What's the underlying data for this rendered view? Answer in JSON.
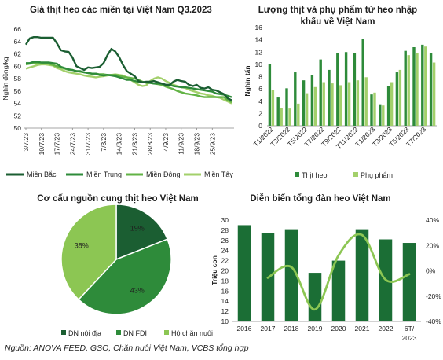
{
  "colors": {
    "bac": "#1b5e32",
    "trung": "#2e8b3a",
    "dong": "#62b345",
    "tay": "#a3d06b",
    "thit": "#2e8b3a",
    "phu": "#a3d06b",
    "noidia": "#1b5e32",
    "fdi": "#2e8b3a",
    "chan": "#8cc653",
    "bar4": "#1b6e35",
    "line4": "#8cc653"
  },
  "chart_data": [
    {
      "type": "line",
      "title": "Giá thịt heo các miền tại Việt Nam Q3.2023",
      "ylabel": "Nghìn đồng/kg",
      "ylim": [
        50,
        66
      ],
      "yticks": [
        50,
        52,
        54,
        56,
        58,
        60,
        62,
        64,
        66
      ],
      "x_tick_labels": [
        "3/7/23",
        "10/7/23",
        "17/7/23",
        "24/7/23",
        "31/7/23",
        "7/8/23",
        "14/8/23",
        "21/8/23",
        "28/8/23",
        "4/9/23",
        "11/9/23",
        "18/9/23",
        "25/9/23"
      ],
      "legend_position": "bottom",
      "series": [
        {
          "name": "Miền Bắc",
          "values": [
            63.5,
            64.5,
            64.7,
            64.7,
            64.6,
            64.6,
            64.6,
            64.6,
            63.7,
            62.6,
            62.4,
            62.3,
            61.4,
            60.0,
            59.7,
            59.4,
            59.8,
            59.7,
            59.8,
            59.9,
            60.5,
            61.8,
            62.8,
            62.4,
            61.5,
            60.2,
            59.2,
            58.8,
            58.4,
            57.6,
            57.4,
            57.5,
            57.5,
            57.6,
            57.4,
            57.2,
            57.0,
            57.0,
            57.5,
            57.8,
            57.6,
            57.5,
            57.0,
            56.8,
            57.0,
            56.5,
            56.4,
            56.6,
            56.2,
            56.1,
            55.8,
            55.5,
            54.8,
            54.5
          ]
        },
        {
          "name": "Miền Trung",
          "values": [
            60.5,
            60.5,
            60.7,
            60.7,
            60.6,
            60.6,
            60.6,
            60.5,
            60.4,
            59.9,
            59.7,
            59.5,
            59.4,
            59.2,
            59.2,
            59.0,
            58.9,
            58.8,
            58.8,
            58.6,
            58.5,
            58.6,
            58.5,
            58.4,
            58.2,
            58.0,
            57.8,
            57.8,
            57.6,
            57.5,
            57.4,
            57.4,
            57.3,
            57.2,
            57.2,
            57.2,
            57.0,
            57.0,
            56.8,
            56.7,
            56.6,
            56.6,
            56.5,
            56.4,
            56.3,
            56.2,
            56.1,
            56.0,
            55.9,
            55.6,
            55.5,
            55.4,
            55.2,
            55.0
          ]
        },
        {
          "name": "Miền Đông",
          "values": [
            60.3,
            60.4,
            60.5,
            60.5,
            60.5,
            60.5,
            60.4,
            60.2,
            60.0,
            59.8,
            59.6,
            59.4,
            59.4,
            59.2,
            59.1,
            59.0,
            58.9,
            58.8,
            58.8,
            58.7,
            58.7,
            58.6,
            58.6,
            58.6,
            58.5,
            58.3,
            58.2,
            58.1,
            58.0,
            57.8,
            57.5,
            57.3,
            57.3,
            57.2,
            57.1,
            57.0,
            56.7,
            56.5,
            56.3,
            56.0,
            55.8,
            55.6,
            55.5,
            55.4,
            55.3,
            55.1,
            55.0,
            55.0,
            55.0,
            55.0,
            55.0,
            55.0,
            54.5,
            54.2
          ]
        },
        {
          "name": "Miền Tây",
          "values": [
            59.6,
            59.8,
            60.0,
            60.2,
            60.3,
            60.3,
            60.2,
            60.1,
            59.7,
            59.5,
            59.2,
            59.0,
            58.9,
            58.8,
            58.7,
            58.5,
            58.4,
            58.3,
            58.2,
            58.3,
            58.4,
            58.5,
            58.6,
            58.7,
            58.6,
            58.5,
            58.2,
            57.8,
            57.4,
            57.0,
            56.8,
            56.9,
            57.6,
            58.0,
            58.2,
            58.0,
            57.6,
            57.3,
            57.0,
            56.8,
            56.6,
            56.5,
            56.2,
            56.0,
            55.8,
            55.6,
            55.5,
            55.3,
            55.2,
            55.0,
            54.9,
            54.6,
            54.3,
            54.0
          ]
        }
      ]
    },
    {
      "type": "bar",
      "title_line1": "Lượng thịt và phụ phẩm từ heo nhập",
      "title_line2": "khẩu về Việt Nam",
      "ylabel": "Nghìn tấn",
      "ylim": [
        0,
        16
      ],
      "yticks": [
        0,
        2,
        4,
        6,
        8,
        10,
        12,
        14,
        16
      ],
      "x_tick_labels": [
        "T1/2022",
        "T3/2022",
        "T5/2022",
        "T7/2022",
        "T9/2022",
        "T11/2022",
        "T1/2023",
        "T3/2023",
        "T5/2023",
        "T7/2023"
      ],
      "legend_position": "bottom",
      "series": [
        {
          "name": "Thịt heo",
          "values": [
            10.1,
            4.6,
            6.1,
            8.7,
            7.4,
            8.2,
            10.8,
            9.1,
            11.8,
            12.0,
            11.8,
            14.2,
            5.1,
            3.5,
            6.5,
            8.7,
            12.2,
            12.8,
            13.2,
            11.8
          ]
        },
        {
          "name": "Phụ phẩm",
          "values": [
            5.8,
            2.9,
            2.8,
            3.6,
            5.3,
            6.3,
            7.1,
            6.9,
            6.6,
            7.1,
            7.4,
            7.9,
            5.4,
            3.3,
            7.1,
            9.1,
            11.5,
            11.8,
            12.9,
            10.3
          ]
        }
      ]
    },
    {
      "type": "pie",
      "title": "Cơ cấu nguồn cung thịt heo Việt Nam",
      "legend_position": "bottom",
      "slices": [
        {
          "label": "DN nội địa",
          "value": 19,
          "text": "19%"
        },
        {
          "label": "DN FDI",
          "value": 43,
          "text": "43%"
        },
        {
          "label": "Hộ chăn nuôi",
          "value": 38,
          "text": "38%"
        }
      ]
    },
    {
      "type": "bar+line",
      "title": "Diễn biến tổng đàn heo Việt Nam",
      "ylabel": "Triệu con",
      "ylim": [
        10,
        30
      ],
      "yticks": [
        10,
        12,
        14,
        16,
        18,
        20,
        22,
        24,
        26,
        28,
        30
      ],
      "y2lim": [
        -40,
        40
      ],
      "y2ticks": [
        "40%",
        "20%",
        "0%",
        "-20%",
        "-40%"
      ],
      "categories": [
        "2016",
        "2017",
        "2018",
        "2019",
        "2020",
        "2021",
        "2022",
        "6T/\n2023"
      ],
      "category_line1": [
        "2016",
        "2017",
        "2018",
        "2019",
        "2020",
        "2021",
        "2022",
        "6T/"
      ],
      "category_line2": [
        "",
        "",
        "",
        "",
        "",
        "",
        "",
        "2023"
      ],
      "bars": [
        29.0,
        27.4,
        28.2,
        19.6,
        22.0,
        28.2,
        26.2,
        25.5
      ],
      "growth_pct": [
        null,
        -5.5,
        2.9,
        -30.5,
        12.2,
        28.2,
        -7.1,
        -2.7
      ]
    }
  ],
  "source_text": "Nguồn: ANOVA FEED, GSO, Chăn nuôi Việt Nam, VCBS tổng hợp"
}
